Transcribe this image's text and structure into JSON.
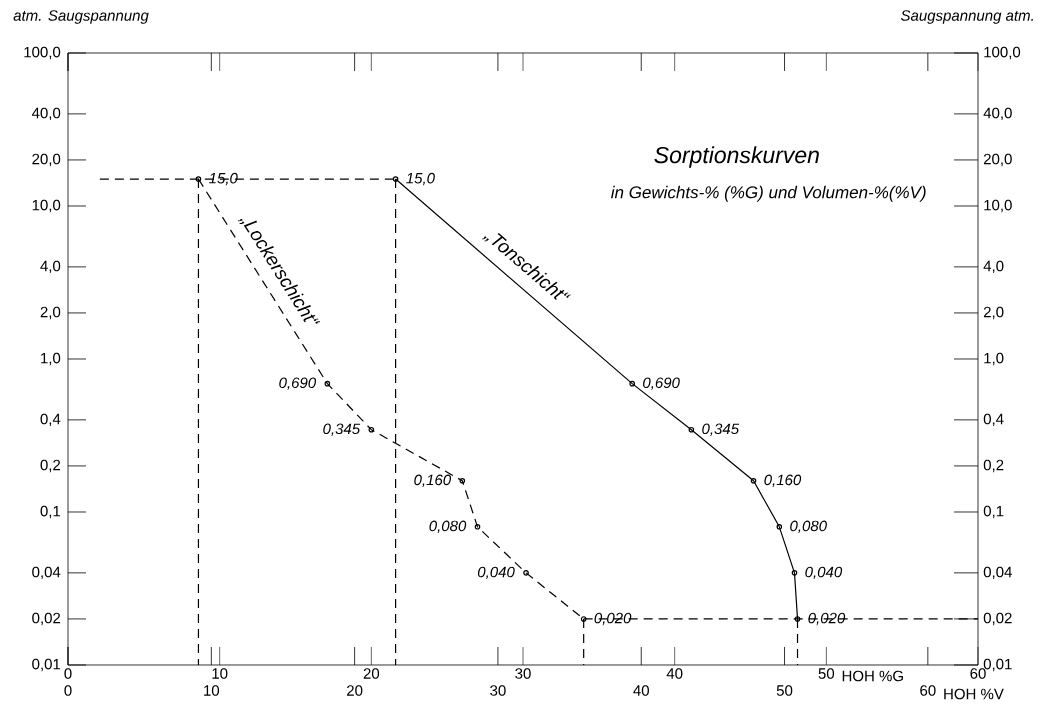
{
  "chart_data": {
    "type": "line",
    "title": "Sorptionskurven",
    "subtitle": "in Gewichts-% (%G) und Volumen-%(%V)",
    "ylabel": "atm. Saugspannung",
    "y2label": "Saugspannung atm.",
    "xlabel": "HOH %G",
    "x2label": "HOH %V",
    "log": "y",
    "marker": "circle",
    "legend": false,
    "xlim": [
      0,
      60
    ],
    "xticks": [
      0,
      10,
      20,
      30,
      40,
      50,
      60
    ],
    "x2lim": [
      0,
      63.5
    ],
    "x2ticks": [
      0,
      10,
      20,
      30,
      40,
      50,
      60
    ],
    "ylim": [
      0.01,
      100
    ],
    "yticks": [
      {
        "value": 0.01,
        "label": "0,01"
      },
      {
        "value": 0.02,
        "label": "0,02"
      },
      {
        "value": 0.04,
        "label": "0,04"
      },
      {
        "value": 0.1,
        "label": "0,1"
      },
      {
        "value": 0.2,
        "label": "0,2"
      },
      {
        "value": 0.4,
        "label": "0,4"
      },
      {
        "value": 1,
        "label": "1,0"
      },
      {
        "value": 2,
        "label": "2,0"
      },
      {
        "value": 4,
        "label": "4,0"
      },
      {
        "value": 10,
        "label": "10,0"
      },
      {
        "value": 20,
        "label": "20,0"
      },
      {
        "value": 40,
        "label": "40,0"
      },
      {
        "value": 100,
        "label": "100,0"
      }
    ],
    "series": [
      {
        "name": "„Lockerschicht“",
        "color": "#000000",
        "line_style": "dashed",
        "x": [
          8.6,
          17.1,
          20.0,
          26.0,
          27.0,
          30.2,
          34.0
        ],
        "values": [
          15.0,
          0.69,
          0.345,
          0.16,
          0.08,
          0.04,
          0.02
        ],
        "value_labels": [
          "15,0",
          "0,690",
          "0,345",
          "0,160",
          "0,080",
          "0,040",
          "0,020"
        ]
      },
      {
        "name": "„Tonschicht“",
        "color": "#000000",
        "line_style": "solid",
        "x": [
          21.6,
          37.2,
          41.1,
          45.2,
          46.9,
          47.9,
          48.1
        ],
        "values": [
          15.0,
          0.69,
          0.345,
          0.16,
          0.08,
          0.04,
          0.02
        ],
        "value_labels": [
          "15,0",
          "0,690",
          "0,345",
          "0,160",
          "0,080",
          "0,040",
          "0,020"
        ]
      },
      {
        "type": "line",
        "color": "#000000",
        "line_style": "dashed",
        "marker": "none",
        "x": [
          2.1,
          21.6
        ],
        "values": [
          15,
          15
        ]
      },
      {
        "type": "line",
        "color": "#000000",
        "line_style": "dashed",
        "marker": "none",
        "x": [
          34.0,
          60
        ],
        "values": [
          0.02,
          0.02
        ]
      },
      {
        "type": "line",
        "color": "#000000",
        "line_style": "dashed",
        "marker": "none",
        "x": [
          8.6,
          8.6
        ],
        "values": [
          15,
          0.01
        ]
      },
      {
        "type": "line",
        "color": "#000000",
        "line_style": "dashed",
        "marker": "none",
        "x": [
          21.6,
          21.6
        ],
        "values": [
          15,
          0.01
        ]
      },
      {
        "type": "line",
        "color": "#000000",
        "line_style": "dashed",
        "marker": "none",
        "x": [
          34.0,
          34.0
        ],
        "values": [
          0.02,
          0.01
        ]
      },
      {
        "type": "line",
        "color": "#000000",
        "line_style": "dashed",
        "marker": "none",
        "x": [
          48.1,
          48.1
        ],
        "values": [
          0.02,
          0.01
        ]
      }
    ]
  }
}
